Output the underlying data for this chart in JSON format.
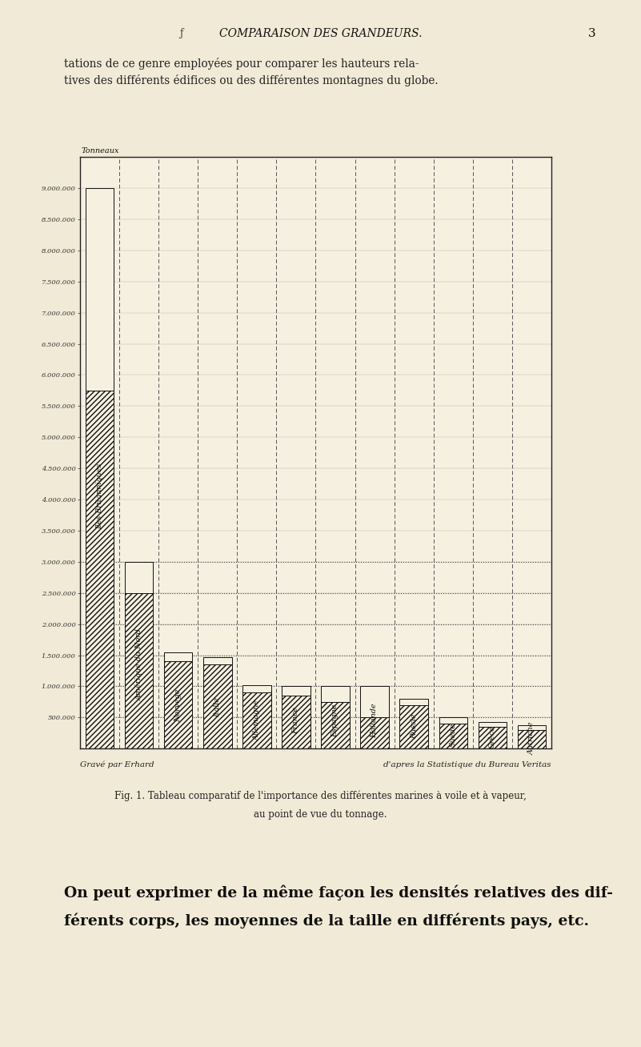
{
  "title": "COMPARAISON DES GRANDEURS.",
  "page_number": "3",
  "y_label": "Tonneaux",
  "y_min": 0,
  "y_max": 9500000,
  "y_ticks": [
    500000,
    1000000,
    1500000,
    2000000,
    2500000,
    3000000,
    3500000,
    4000000,
    4500000,
    5000000,
    5500000,
    6000000,
    6500000,
    7000000,
    7500000,
    8000000,
    8500000,
    9000000
  ],
  "y_tick_labels": [
    "500.000",
    "1.000.000",
    "1.500.000",
    "2.000.000",
    "2.500.000",
    "3.000.000",
    "3.500.000",
    "4.000.000",
    "4.500.000",
    "5.000.000",
    "5.500.000",
    "6.000.000",
    "6.500.000",
    "7.000.000",
    "7.500.000",
    "8.000.000",
    "8.500.000",
    "9.000.000"
  ],
  "countries": [
    "Iles Britanniques",
    "Amérique du Nord",
    "Norvège",
    "Italie",
    "Allemagne",
    "France",
    "Espagne",
    "Hollande",
    "Russie",
    "Suède",
    "Grèce",
    "Autriche"
  ],
  "values_hatched": [
    5750000,
    2500000,
    1400000,
    1350000,
    900000,
    850000,
    750000,
    500000,
    700000,
    400000,
    350000,
    300000
  ],
  "values_white": [
    3250000,
    500000,
    150000,
    120000,
    120000,
    150000,
    250000,
    500000,
    100000,
    100000,
    80000,
    80000
  ],
  "dotted_lines": [
    500000,
    1000000,
    1500000,
    2000000,
    2500000,
    3000000
  ],
  "bar_edge_color": "#111111",
  "background_color": "#f0ead6",
  "chart_bg_color": "#f5f0e0",
  "chart_inner_bg": "#f5f0e0",
  "footer_left": "Gravé par Erhard",
  "footer_right": "d'apres la Statistique du Bureau Veritas",
  "caption_line1": "Fig. 1. Tableau comparatif de l'importance des différentes marines à voile et à vapeur,",
  "caption_line2": "au point de vue du tonnage.",
  "header_line1": "tations de ce genre employées pour comparer les hauteurs rela-",
  "header_line2": "tives des différents édifices ou des différentes montagnes du globe.",
  "bottom_line1": "On peut exprimer de la même façon les densités relatives des dif-",
  "bottom_line2": "férents corps, les moyennes de la taille en différents pays, etc."
}
